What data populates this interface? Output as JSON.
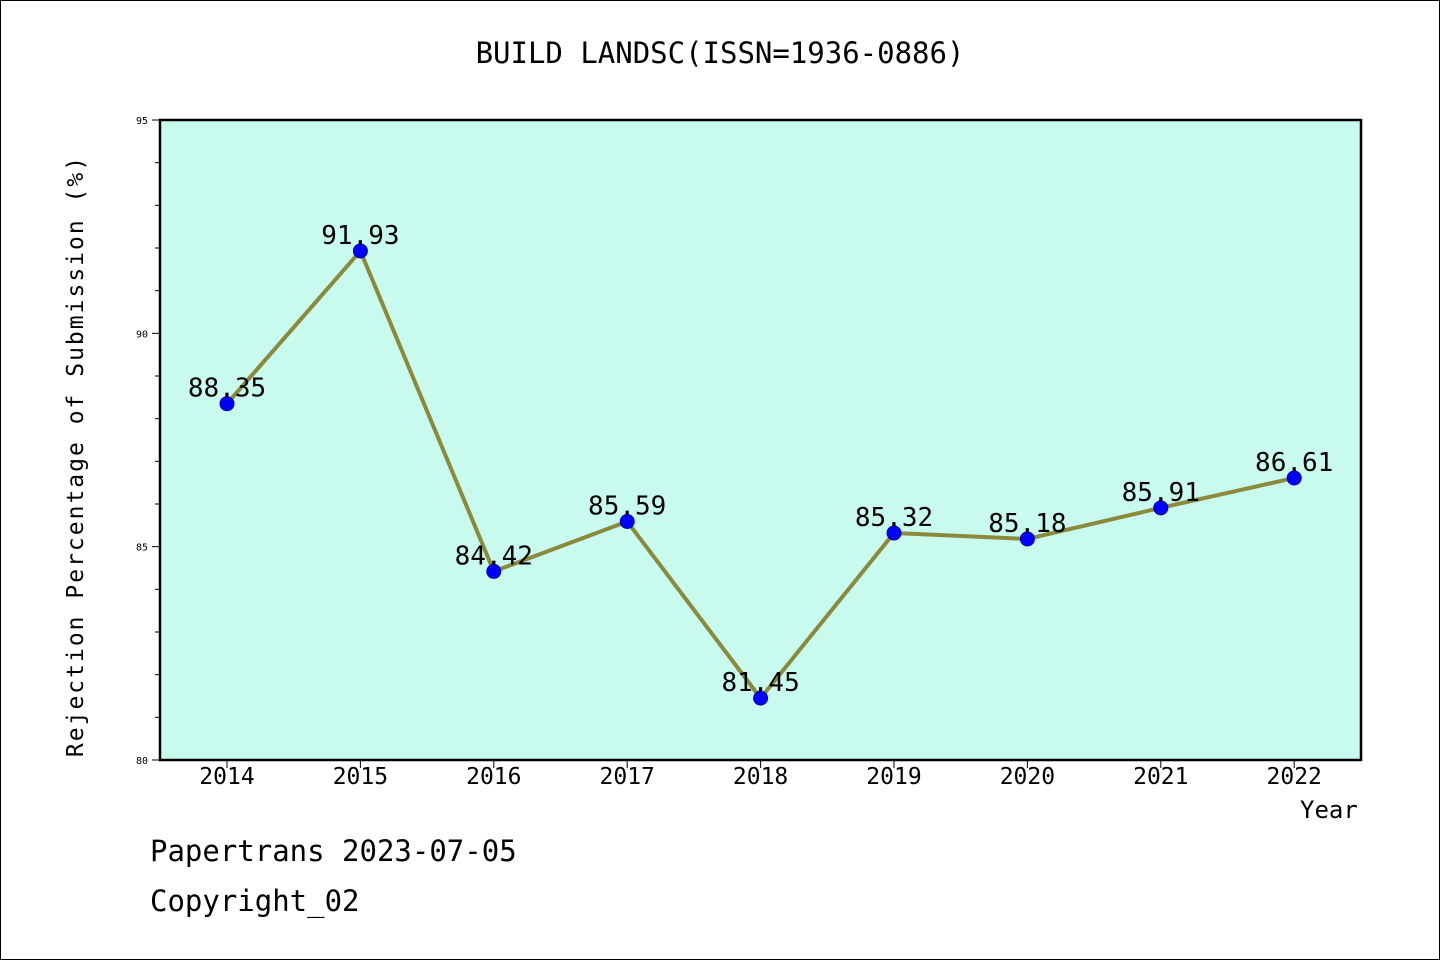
{
  "chart_data": {
    "type": "line",
    "title": "BUILD LANDSC(ISSN=1936-0886)",
    "xlabel": "Year",
    "ylabel": "Rejection Percentage of Submission (%)",
    "categories": [
      "2014",
      "2015",
      "2016",
      "2017",
      "2018",
      "2019",
      "2020",
      "2021",
      "2022"
    ],
    "series": [
      {
        "values": [
          88.35,
          91.93,
          84.42,
          85.59,
          81.45,
          85.32,
          85.18,
          85.91,
          86.61
        ],
        "data_labels": [
          "88.35",
          "91.93",
          "84.42",
          "85.59",
          "81.45",
          "85.32",
          "85.18",
          "85.91",
          "86.61"
        ],
        "line_color": "#8b8a3c",
        "marker_color": "#0000ff"
      }
    ],
    "ylim": [
      80,
      95
    ],
    "yticks": [
      80,
      85,
      90,
      95
    ],
    "y_minor_step": 1,
    "grid": false,
    "legend": "none",
    "plot_background": "#c8fbee"
  },
  "footer": {
    "date_line": "Papertrans 2023-07-05",
    "copyright_line": "Copyright_02"
  }
}
